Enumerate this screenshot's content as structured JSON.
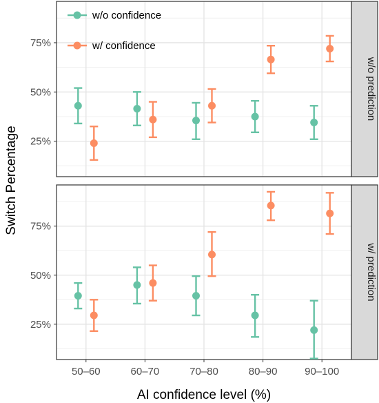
{
  "chart_data": {
    "type": "scatter",
    "subtype": "point-errorbar-faceted",
    "xlabel": "AI confidence level (%)",
    "ylabel": "Switch Percentage",
    "categories": [
      "50–60",
      "60–70",
      "70–80",
      "80–90",
      "90–100"
    ],
    "ylim": [
      0.07,
      0.96
    ],
    "y_ticks": [
      0.25,
      0.5,
      0.75
    ],
    "y_tick_labels": [
      "25%",
      "50%",
      "75%"
    ],
    "grid": true,
    "legend_position": "top-left",
    "colors": {
      "w/o confidence": "#66c2a5",
      "w/ confidence": "#fc8d62"
    },
    "panels": [
      {
        "strip": "w/o prediction",
        "series": [
          {
            "name": "w/o confidence",
            "values": [
              0.43,
              0.415,
              0.355,
              0.375,
              0.345
            ],
            "lower": [
              0.34,
              0.33,
              0.26,
              0.295,
              0.26
            ],
            "upper": [
              0.52,
              0.5,
              0.445,
              0.455,
              0.43
            ]
          },
          {
            "name": "w/ confidence",
            "values": [
              0.24,
              0.36,
              0.43,
              0.665,
              0.72
            ],
            "lower": [
              0.155,
              0.27,
              0.345,
              0.595,
              0.655
            ],
            "upper": [
              0.325,
              0.45,
              0.515,
              0.735,
              0.785
            ]
          }
        ]
      },
      {
        "strip": "w/ prediction",
        "series": [
          {
            "name": "w/o confidence",
            "values": [
              0.395,
              0.45,
              0.395,
              0.295,
              0.22
            ],
            "lower": [
              0.33,
              0.355,
              0.295,
              0.185,
              0.075
            ],
            "upper": [
              0.46,
              0.54,
              0.495,
              0.4,
              0.37
            ]
          },
          {
            "name": "w/ confidence",
            "values": [
              0.295,
              0.46,
              0.605,
              0.855,
              0.815
            ],
            "lower": [
              0.215,
              0.37,
              0.495,
              0.78,
              0.71
            ],
            "upper": [
              0.375,
              0.55,
              0.72,
              0.925,
              0.92
            ]
          }
        ]
      }
    ]
  }
}
